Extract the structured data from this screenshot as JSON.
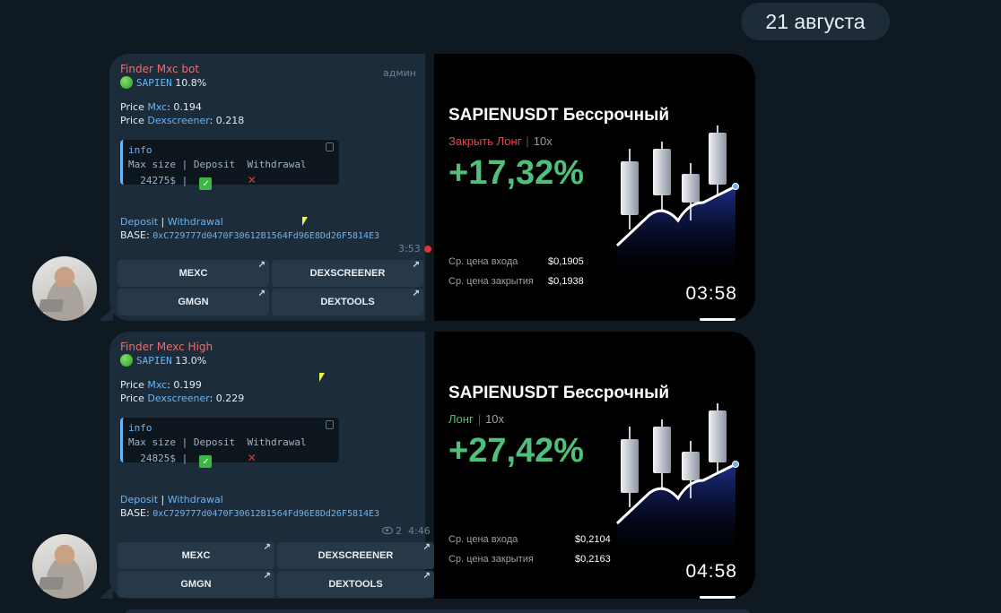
{
  "date_label": "21 августа",
  "messages": [
    {
      "sender": "Finder Mxc bot",
      "role": "админ",
      "token": "SAPIEN",
      "spread": "10.8%",
      "price_label": "Price",
      "mxc_link": "Mxc",
      "mxc_price": ": 0.194",
      "dex_link": "Dexscreener",
      "dex_price": ": 0.218",
      "info_label": "info",
      "info_header": "Max size | Deposit  Withdrawal",
      "info_size": "  24275$ |",
      "deposit_link": "Deposit",
      "withdrawal_link": "Withdrawal",
      "divider": " | ",
      "base_label": "BASE:",
      "base_address": "0xC729777d0470F30612B1564Fd96E8Dd26F5814E3",
      "views": "",
      "time": "3:53",
      "buttons": [
        "MEXC",
        "DEXSCREENER",
        "GMGN",
        "DEXTOOLS"
      ],
      "card": {
        "title": "SAPIENUSDT Бессрочный",
        "side": "Закрыть Лонг",
        "side_color": "#e6484f",
        "leverage": "10x",
        "pnl": "+17,32%",
        "entry_label": "Ср. цена входа",
        "entry_value": "$0,1905",
        "close_label": "Ср. цена закрытия",
        "close_value": "$0,1938",
        "duration": "03:58"
      }
    },
    {
      "sender": "Finder Mexc High",
      "role": "",
      "token": "SAPIEN",
      "spread": "13.0%",
      "price_label": "Price",
      "mxc_link": "Mxc",
      "mxc_price": ": 0.199",
      "dex_link": "Dexscreener",
      "dex_price": ": 0.229",
      "info_label": "info",
      "info_header": "Max size | Deposit  Withdrawal",
      "info_size": "  24825$ |",
      "deposit_link": "Deposit",
      "withdrawal_link": "Withdrawal",
      "divider": " | ",
      "base_label": "BASE:",
      "base_address": "0xC729777d0470F30612B1564Fd96E8Dd26F5814E3",
      "views": "2",
      "time": "4:46",
      "buttons": [
        "MEXC",
        "DEXSCREENER",
        "GMGN",
        "DEXTOOLS"
      ],
      "card": {
        "title": "SAPIENUSDT Бессрочный",
        "side": "Лонг",
        "side_color": "#4fbf7a",
        "leverage": "10x",
        "pnl": "+27,42%",
        "entry_label": "Ср. цена входа",
        "entry_value": "$0,2104",
        "close_label": "Ср. цена закрытия",
        "close_value": "$0,2163",
        "duration": "04:58"
      }
    }
  ],
  "icons": {
    "status": "green-circle-icon",
    "copy": "copy-icon",
    "check": "check-mark-icon",
    "cross": "cross-mark-icon",
    "link_arrow": "external-arrow-icon",
    "eye": "eye-icon"
  },
  "check_glyph": "✓",
  "cross_glyph": "✕",
  "arrow_glyph": "↗"
}
